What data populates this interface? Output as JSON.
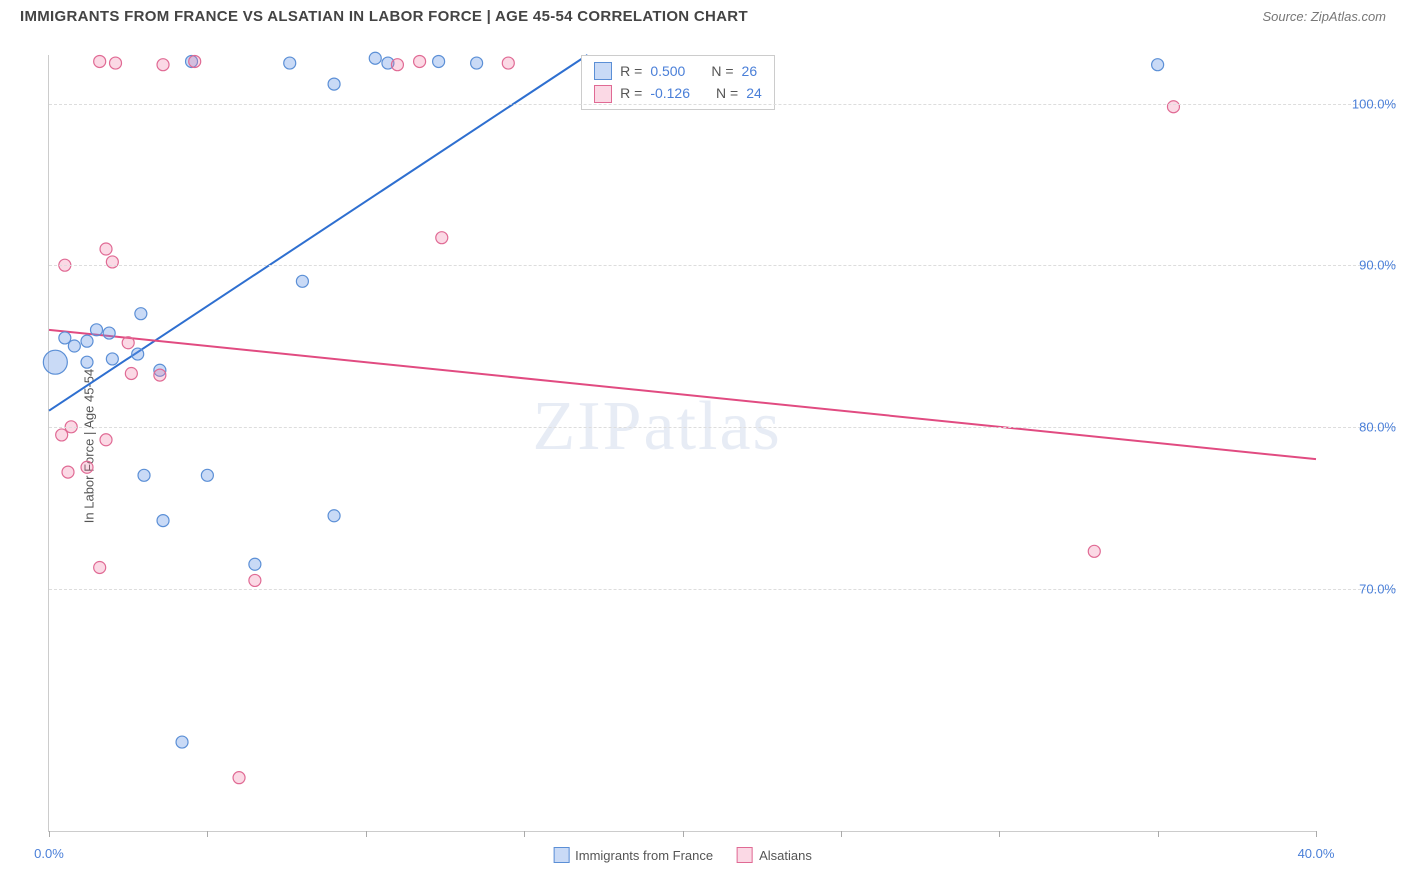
{
  "header": {
    "title": "IMMIGRANTS FROM FRANCE VS ALSATIAN IN LABOR FORCE | AGE 45-54 CORRELATION CHART",
    "source": "Source: ZipAtlas.com"
  },
  "watermark": "ZIPatlas",
  "chart": {
    "type": "scatter",
    "ylabel": "In Labor Force | Age 45-54",
    "xlim": [
      0,
      40
    ],
    "ylim": [
      55,
      103
    ],
    "xticks": [
      0,
      5,
      10,
      15,
      20,
      25,
      30,
      35,
      40
    ],
    "xtick_labels": {
      "0": "0.0%",
      "40": "40.0%"
    },
    "yticks": [
      70,
      80,
      90,
      100
    ],
    "ytick_labels": [
      "70.0%",
      "80.0%",
      "90.0%",
      "100.0%"
    ],
    "grid_color": "#dddddd",
    "background_color": "#ffffff",
    "series": [
      {
        "name": "Immigrants from France",
        "fill": "rgba(100,150,230,0.35)",
        "stroke": "#5b8fd6",
        "line_color": "#2e6fd0",
        "r_value": "0.500",
        "n_value": "26",
        "trend": {
          "x1": 0,
          "y1": 81,
          "x2": 17,
          "y2": 103
        },
        "points": [
          {
            "x": 0.2,
            "y": 84,
            "r": 12
          },
          {
            "x": 0.5,
            "y": 85.5,
            "r": 6
          },
          {
            "x": 0.8,
            "y": 85,
            "r": 6
          },
          {
            "x": 1.2,
            "y": 85.3,
            "r": 6
          },
          {
            "x": 1.5,
            "y": 86,
            "r": 6
          },
          {
            "x": 1.9,
            "y": 85.8,
            "r": 6
          },
          {
            "x": 1.2,
            "y": 84,
            "r": 6
          },
          {
            "x": 2.0,
            "y": 84.2,
            "r": 6
          },
          {
            "x": 2.9,
            "y": 87,
            "r": 6
          },
          {
            "x": 3.5,
            "y": 83.5,
            "r": 6
          },
          {
            "x": 2.8,
            "y": 84.5,
            "r": 6
          },
          {
            "x": 3.0,
            "y": 77,
            "r": 6
          },
          {
            "x": 5.0,
            "y": 77,
            "r": 6
          },
          {
            "x": 3.6,
            "y": 74.2,
            "r": 6
          },
          {
            "x": 6.5,
            "y": 71.5,
            "r": 6
          },
          {
            "x": 4.2,
            "y": 60.5,
            "r": 6
          },
          {
            "x": 8.0,
            "y": 89,
            "r": 6
          },
          {
            "x": 9.0,
            "y": 74.5,
            "r": 6
          },
          {
            "x": 7.6,
            "y": 102.5,
            "r": 6
          },
          {
            "x": 9.0,
            "y": 101.2,
            "r": 6
          },
          {
            "x": 10.3,
            "y": 102.8,
            "r": 6
          },
          {
            "x": 10.7,
            "y": 102.5,
            "r": 6
          },
          {
            "x": 12.3,
            "y": 102.6,
            "r": 6
          },
          {
            "x": 13.5,
            "y": 102.5,
            "r": 6
          },
          {
            "x": 35.0,
            "y": 102.4,
            "r": 6
          },
          {
            "x": 4.5,
            "y": 102.6,
            "r": 6
          }
        ]
      },
      {
        "name": "Alsatians",
        "fill": "rgba(240,120,160,0.28)",
        "stroke": "#e06a94",
        "line_color": "#e14b81",
        "r_value": "-0.126",
        "n_value": "24",
        "trend": {
          "x1": 0,
          "y1": 86,
          "x2": 40,
          "y2": 78
        },
        "points": [
          {
            "x": 0.5,
            "y": 90,
            "r": 6
          },
          {
            "x": 1.8,
            "y": 91,
            "r": 6
          },
          {
            "x": 2.0,
            "y": 90.2,
            "r": 6
          },
          {
            "x": 0.7,
            "y": 80,
            "r": 6
          },
          {
            "x": 0.4,
            "y": 79.5,
            "r": 6
          },
          {
            "x": 1.8,
            "y": 79.2,
            "r": 6
          },
          {
            "x": 0.6,
            "y": 77.2,
            "r": 6
          },
          {
            "x": 1.2,
            "y": 77.5,
            "r": 6
          },
          {
            "x": 2.6,
            "y": 83.3,
            "r": 6
          },
          {
            "x": 3.5,
            "y": 83.2,
            "r": 6
          },
          {
            "x": 1.6,
            "y": 71.3,
            "r": 6
          },
          {
            "x": 6.5,
            "y": 70.5,
            "r": 6
          },
          {
            "x": 6.0,
            "y": 58.3,
            "r": 6
          },
          {
            "x": 1.6,
            "y": 102.6,
            "r": 6
          },
          {
            "x": 2.1,
            "y": 102.5,
            "r": 6
          },
          {
            "x": 3.6,
            "y": 102.4,
            "r": 6
          },
          {
            "x": 4.6,
            "y": 102.6,
            "r": 6
          },
          {
            "x": 11.0,
            "y": 102.4,
            "r": 6
          },
          {
            "x": 11.7,
            "y": 102.6,
            "r": 6
          },
          {
            "x": 14.5,
            "y": 102.5,
            "r": 6
          },
          {
            "x": 12.4,
            "y": 91.7,
            "r": 6
          },
          {
            "x": 33.0,
            "y": 72.3,
            "r": 6
          },
          {
            "x": 35.5,
            "y": 99.8,
            "r": 6
          },
          {
            "x": 2.5,
            "y": 85.2,
            "r": 6
          }
        ]
      }
    ]
  },
  "legend": {
    "series1_label": "Immigrants from France",
    "series2_label": "Alsatians"
  }
}
